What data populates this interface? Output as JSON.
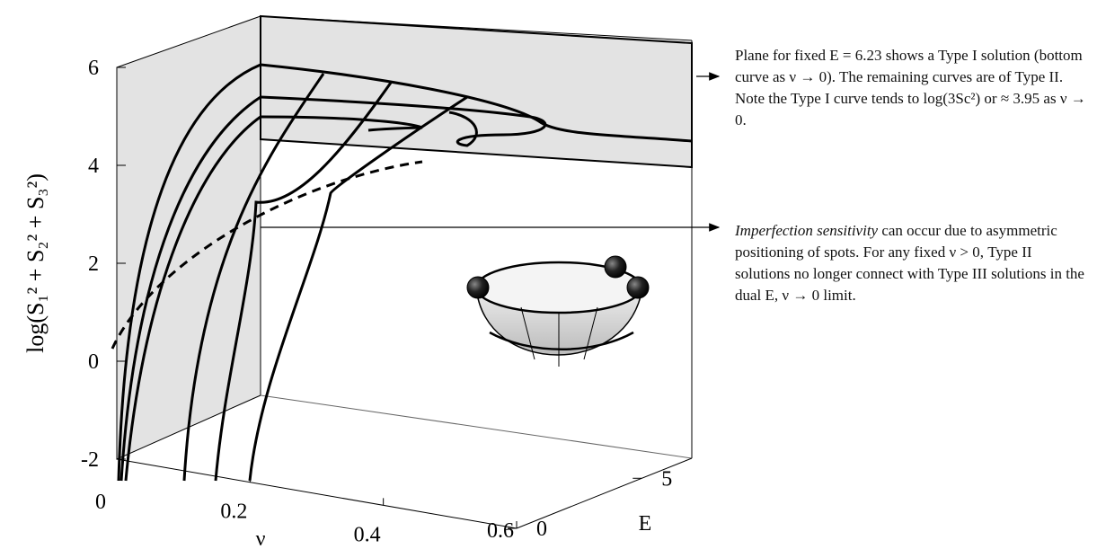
{
  "y_axis": {
    "label": "log(S₁² + S₂² + S₃²)",
    "lim": [
      -2,
      6
    ],
    "ticks": [
      -2,
      0,
      2,
      4,
      6
    ]
  },
  "x_axis": {
    "label": "ν",
    "lim": [
      0,
      0.6
    ],
    "ticks": [
      0,
      0.2,
      0.4,
      0.6
    ]
  },
  "e_axis": {
    "label": "E",
    "lim": [
      0,
      7
    ],
    "ticks": [
      0,
      5
    ]
  },
  "annotations": [
    {
      "text": "Plane for fixed E = 6.23 shows a Type I solution (bottom curve as ν → 0). The remaining curves are of Type II. Note the Type I curve tends to log(3Sc²) or ≈ 3.95 as ν → 0."
    },
    {
      "emphasis": "Imperfection sensitivity",
      "text": " can occur due to asymmetric positioning of spots. For any fixed ν > 0, Type II solutions no longer connect with Type III solutions in the dual E, ν → 0 limit."
    }
  ]
}
